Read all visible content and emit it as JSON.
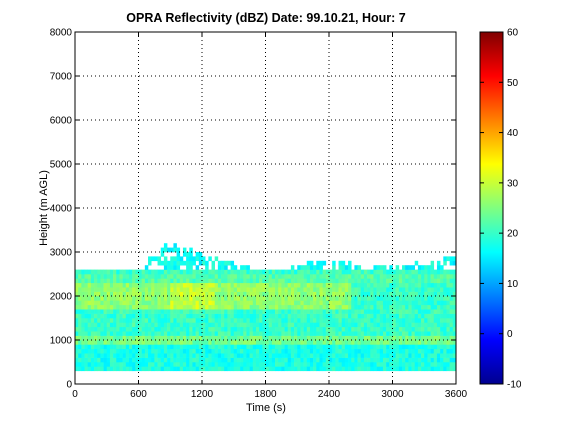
{
  "chart_data": {
    "type": "heatmap",
    "title": "OPRA Reflectivity (dBZ)  Date: 99.10.21, Hour: 7",
    "xlabel": "Time (s)",
    "ylabel": "Height (m AGL)",
    "xlim": [
      0,
      3600
    ],
    "ylim": [
      0,
      8000
    ],
    "xticks": [
      "0",
      "600",
      "1200",
      "1800",
      "2400",
      "3000",
      "3600"
    ],
    "yticks": [
      "0",
      "1000",
      "2000",
      "3000",
      "4000",
      "5000",
      "6000",
      "7000",
      "8000"
    ],
    "grid": true,
    "colorbar": {
      "colormap": "jet",
      "range": [
        -10,
        60
      ],
      "ticks": [
        "-10",
        "0",
        "10",
        "20",
        "30",
        "40",
        "50",
        "60"
      ]
    },
    "height_bins_m": [
      300,
      500,
      700,
      900,
      1100,
      1300,
      1500,
      1700,
      1900,
      2100,
      2300,
      2500
    ],
    "echo_layers": [
      {
        "height_range_m": [
          300,
          900
        ],
        "time_range_s": [
          0,
          3600
        ],
        "dbz": 18
      },
      {
        "height_range_m": [
          900,
          1100
        ],
        "time_range_s": [
          0,
          3600
        ],
        "dbz": 24
      },
      {
        "height_range_m": [
          1100,
          1700
        ],
        "time_range_s": [
          0,
          3600
        ],
        "dbz": 20
      },
      {
        "height_range_m": [
          1700,
          2300
        ],
        "time_range_s": [
          0,
          2600
        ],
        "dbz": 26
      },
      {
        "height_range_m": [
          2300,
          2550
        ],
        "time_range_s": [
          0,
          3600
        ],
        "dbz": 22
      }
    ],
    "peak_region": {
      "time_range_s": [
        900,
        1300
      ],
      "height_range_m": [
        1700,
        2200
      ],
      "dbz": 30
    },
    "echo_top_m": {
      "time_s": [
        0,
        600,
        900,
        1200,
        1800,
        2400,
        3000,
        3600
      ],
      "height_m": [
        2550,
        2600,
        3200,
        2900,
        2500,
        2800,
        2600,
        2900
      ]
    }
  }
}
